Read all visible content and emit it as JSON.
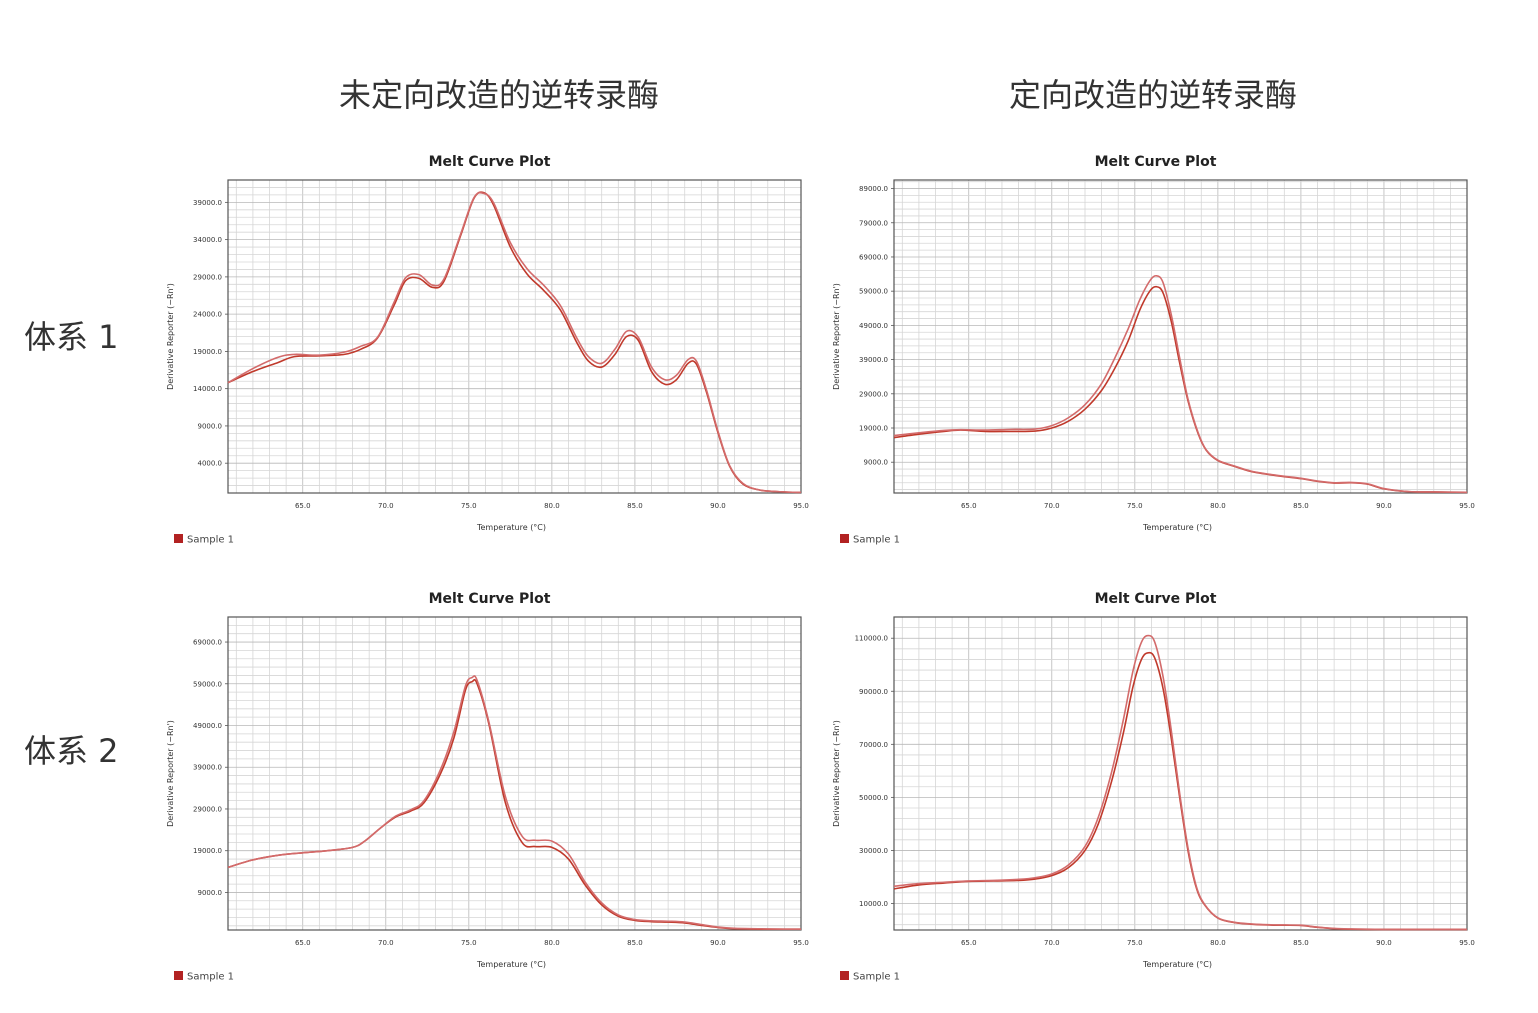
{
  "column_headers": [
    "未定向改造的逆转录酶",
    "定向改造的逆转录酶"
  ],
  "row_headers": [
    "体系 1",
    "体系 2"
  ],
  "chart_data": [
    {
      "type": "line",
      "title": "Melt Curve Plot",
      "xlabel": "Temperature (°C)",
      "ylabel": "Derivative Reporter (−Rn')",
      "xlim": [
        60.5,
        95.0
      ],
      "ylim": [
        0,
        42000
      ],
      "x_ticks": [
        "65.0",
        "70.0",
        "75.0",
        "80.0",
        "85.0",
        "90.0",
        "95.0"
      ],
      "y_ticks": [
        "4000.0",
        "9000.0",
        "14000.0",
        "19000.0",
        "24000.0",
        "29000.0",
        "34000.0",
        "39000.0"
      ],
      "grid": true,
      "legend": [
        {
          "name": "Sample 1",
          "color": "#b22222"
        }
      ],
      "legend_position": "bottom-left",
      "series": [
        {
          "color": "#c0392b",
          "x": [
            60.5,
            62,
            63.5,
            64.5,
            66,
            67.5,
            68.5,
            69.5,
            70.5,
            71.2,
            72,
            72.8,
            73.5,
            74.5,
            75.3,
            75.9,
            76.5,
            77.5,
            78.5,
            79.5,
            80.5,
            81.5,
            82.2,
            83,
            83.8,
            84.5,
            85.2,
            86,
            86.8,
            87.5,
            88.2,
            88.7,
            89.3,
            90,
            90.7,
            91.5,
            92.5,
            93.5,
            94.5,
            95
          ],
          "y": [
            14800,
            16300,
            17500,
            18300,
            18400,
            18600,
            19300,
            20800,
            25200,
            28500,
            28800,
            27600,
            28400,
            34500,
            39500,
            40300,
            38600,
            33000,
            29400,
            27200,
            24600,
            20200,
            17700,
            16900,
            18600,
            21000,
            20500,
            16300,
            14600,
            15200,
            17400,
            17300,
            13600,
            8100,
            3600,
            1200,
            400,
            200,
            100,
            100
          ]
        },
        {
          "color": "#d36b6b",
          "x": [
            60.5,
            62,
            63.5,
            64.5,
            66,
            67.5,
            68.5,
            69.5,
            70.5,
            71.2,
            72,
            72.8,
            73.5,
            74.5,
            75.3,
            75.9,
            76.5,
            77.5,
            78.5,
            79.5,
            80.5,
            81.5,
            82.2,
            83,
            83.8,
            84.5,
            85.2,
            86,
            86.8,
            87.5,
            88.2,
            88.7,
            89.3,
            90,
            90.7,
            91.5,
            92.5,
            93.5,
            94.5,
            95
          ],
          "y": [
            14800,
            16700,
            18200,
            18600,
            18500,
            18900,
            19700,
            20900,
            25600,
            28900,
            29300,
            27900,
            28700,
            34700,
            39600,
            40200,
            38900,
            33600,
            30100,
            27900,
            25200,
            20800,
            18300,
            17400,
            19300,
            21700,
            20900,
            16900,
            15200,
            15800,
            17900,
            17700,
            13900,
            8300,
            3700,
            1300,
            400,
            200,
            100,
            100
          ]
        }
      ]
    },
    {
      "type": "line",
      "title": "Melt Curve Plot",
      "xlabel": "Temperature (°C)",
      "ylabel": "Derivative Reporter (−Rn')",
      "xlim": [
        60.5,
        95.0
      ],
      "ylim": [
        0,
        91500
      ],
      "x_ticks": [
        "65.0",
        "70.0",
        "75.0",
        "80.0",
        "85.0",
        "90.0",
        "95.0"
      ],
      "y_ticks": [
        "9000.0",
        "19000.0",
        "29000.0",
        "39000.0",
        "49000.0",
        "59000.0",
        "69000.0",
        "79000.0",
        "89000.0"
      ],
      "grid": true,
      "legend": [
        {
          "name": "Sample 1",
          "color": "#b22222"
        }
      ],
      "legend_position": "bottom-left",
      "series": [
        {
          "color": "#c0392b",
          "x": [
            60.5,
            62,
            63.5,
            64.5,
            66,
            67.5,
            69,
            70,
            71,
            72,
            73,
            73.8,
            74.6,
            75.3,
            75.9,
            76.3,
            76.7,
            77.2,
            77.7,
            78.2,
            78.8,
            79.3,
            80,
            81,
            82,
            83.5,
            85,
            86,
            87,
            88,
            89,
            90,
            91.5,
            93,
            95
          ],
          "y": [
            16200,
            17200,
            18000,
            18400,
            18000,
            18000,
            18100,
            19000,
            21000,
            24500,
            30000,
            36500,
            44500,
            53500,
            59000,
            60300,
            58500,
            50000,
            38000,
            27000,
            17500,
            12500,
            9500,
            7800,
            6300,
            5100,
            4200,
            3400,
            2900,
            3000,
            2600,
            1200,
            400,
            300,
            200
          ]
        },
        {
          "color": "#d36b6b",
          "x": [
            60.5,
            62,
            63.5,
            64.5,
            66,
            67.5,
            69,
            70,
            71,
            72,
            73,
            73.8,
            74.6,
            75.3,
            75.9,
            76.3,
            76.7,
            77.2,
            77.7,
            78.2,
            78.8,
            79.3,
            80,
            81,
            82,
            83.5,
            85,
            86,
            87,
            88,
            89,
            90,
            91.5,
            93,
            95
          ],
          "y": [
            16800,
            17600,
            18300,
            18500,
            18400,
            18600,
            18700,
            19700,
            22000,
            25800,
            32000,
            39500,
            48000,
            56500,
            62000,
            63500,
            61500,
            52000,
            39500,
            27500,
            17800,
            12600,
            9600,
            7900,
            6400,
            5200,
            4300,
            3500,
            3000,
            3100,
            2700,
            1300,
            400,
            300,
            200
          ]
        }
      ]
    },
    {
      "type": "line",
      "title": "Melt Curve Plot",
      "xlabel": "Temperature (°C)",
      "ylabel": "Derivative Reporter (−Rn')",
      "xlim": [
        60.5,
        95.0
      ],
      "ylim": [
        0,
        75000
      ],
      "x_ticks": [
        "65.0",
        "70.0",
        "75.0",
        "80.0",
        "85.0",
        "90.0",
        "95.0"
      ],
      "y_ticks": [
        "9000.0",
        "19000.0",
        "29000.0",
        "39000.0",
        "49000.0",
        "59000.0",
        "69000.0"
      ],
      "grid": true,
      "legend": [
        {
          "name": "Sample 1",
          "color": "#b22222"
        }
      ],
      "legend_position": "bottom-left",
      "series": [
        {
          "color": "#c0392b",
          "x": [
            60.5,
            62,
            63.5,
            65,
            66.5,
            68,
            68.7,
            69.7,
            70.6,
            71.5,
            72.3,
            73.3,
            74.1,
            74.8,
            75.2,
            75.5,
            76.2,
            77.2,
            78.2,
            79,
            80,
            81,
            82,
            83,
            84,
            85,
            86,
            87,
            88,
            89,
            90,
            91,
            92.5,
            94,
            95
          ],
          "y": [
            15000,
            16800,
            17900,
            18500,
            19000,
            19800,
            21200,
            24500,
            27100,
            28500,
            30500,
            37500,
            46000,
            57500,
            59500,
            59000,
            49500,
            30500,
            21000,
            20000,
            19800,
            17000,
            10800,
            6000,
            3300,
            2300,
            2000,
            1900,
            1700,
            1100,
            600,
            300,
            200,
            200,
            200
          ]
        },
        {
          "color": "#d36b6b",
          "x": [
            60.5,
            62,
            63.5,
            65,
            66.5,
            68,
            68.7,
            69.7,
            70.6,
            71.5,
            72.3,
            73.3,
            74.1,
            74.8,
            75.2,
            75.5,
            76.2,
            77.2,
            78.2,
            79,
            80,
            81,
            82,
            83,
            84,
            85,
            86,
            87,
            88,
            89,
            90,
            91,
            92.5,
            94,
            95
          ],
          "y": [
            15000,
            16800,
            17900,
            18500,
            19000,
            19800,
            21200,
            24500,
            27300,
            28800,
            31000,
            38500,
            47500,
            58500,
            60500,
            59800,
            50000,
            32000,
            22500,
            21500,
            21300,
            18200,
            11500,
            6500,
            3600,
            2500,
            2200,
            2100,
            1900,
            1300,
            700,
            400,
            300,
            200,
            200
          ]
        }
      ]
    },
    {
      "type": "line",
      "title": "Melt Curve Plot",
      "xlabel": "Temperature (°C)",
      "ylabel": "Derivative Reporter (−Rn')",
      "xlim": [
        60.5,
        95.0
      ],
      "ylim": [
        0,
        118000
      ],
      "x_ticks": [
        "65.0",
        "70.0",
        "75.0",
        "80.0",
        "85.0",
        "90.0",
        "95.0"
      ],
      "y_ticks": [
        "10000.0",
        "30000.0",
        "50000.0",
        "70000.0",
        "90000.0",
        "110000.0"
      ],
      "grid": true,
      "legend": [
        {
          "name": "Sample 1",
          "color": "#b22222"
        }
      ],
      "legend_position": "bottom-left",
      "series": [
        {
          "color": "#c0392b",
          "x": [
            60.5,
            62,
            63.5,
            65,
            66.5,
            68,
            69,
            70,
            71,
            72,
            72.8,
            73.6,
            74.3,
            74.9,
            75.4,
            75.8,
            76.2,
            76.7,
            77.2,
            77.7,
            78.2,
            78.7,
            79.2,
            80,
            81,
            82,
            83,
            84,
            85,
            86,
            87,
            88,
            89,
            90,
            91,
            92.5,
            94,
            95
          ],
          "y": [
            15500,
            17000,
            17700,
            18300,
            18500,
            18700,
            19200,
            20500,
            23500,
            30000,
            40000,
            56000,
            74000,
            92000,
            102000,
            104500,
            102500,
            91000,
            72000,
            50000,
            30000,
            16000,
            9500,
            4500,
            2800,
            2200,
            1900,
            1800,
            1700,
            1000,
            500,
            300,
            200,
            200,
            200,
            200,
            200,
            200
          ]
        },
        {
          "color": "#d36b6b",
          "x": [
            60.5,
            62,
            63.5,
            65,
            66.5,
            68,
            69,
            70,
            71,
            72,
            72.8,
            73.6,
            74.3,
            74.9,
            75.4,
            75.8,
            76.2,
            76.7,
            77.2,
            77.7,
            78.2,
            78.7,
            79.2,
            80,
            81,
            82,
            83,
            84,
            85,
            86,
            87,
            88,
            89,
            90,
            91,
            92.5,
            94,
            95
          ],
          "y": [
            16500,
            17500,
            18000,
            18500,
            18700,
            19100,
            19700,
            21100,
            24500,
            31500,
            42500,
            59500,
            79000,
            98000,
            108500,
            111000,
            108500,
            95500,
            75000,
            51500,
            31000,
            16500,
            9700,
            4600,
            2900,
            2300,
            2000,
            1900,
            1800,
            1100,
            600,
            400,
            300,
            200,
            200,
            200,
            200,
            200
          ]
        }
      ]
    }
  ]
}
